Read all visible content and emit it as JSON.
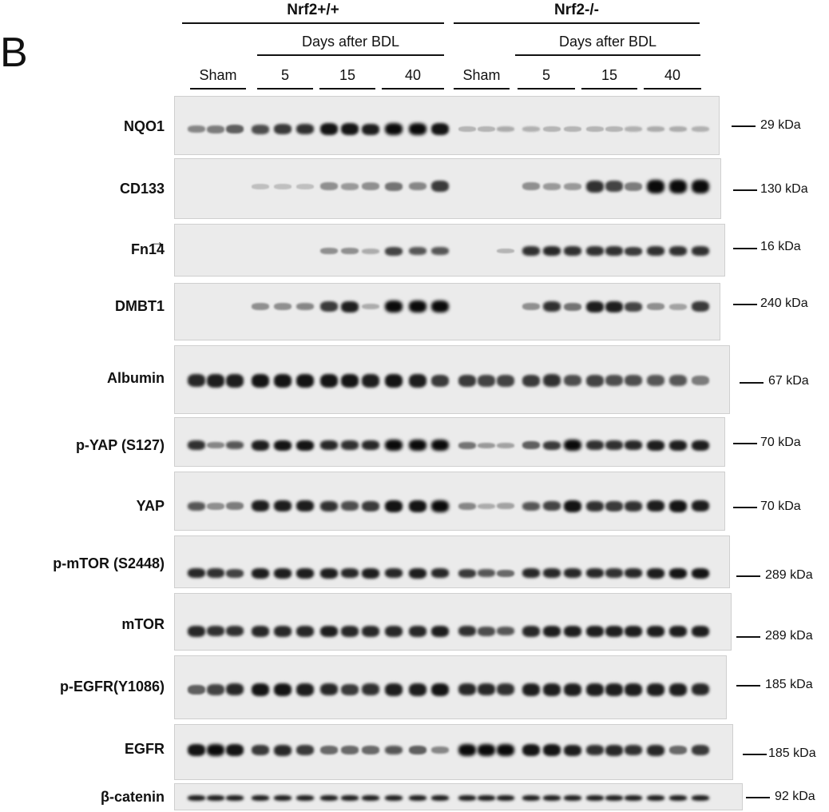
{
  "figure": {
    "panel_letter": "B",
    "genotypes": [
      {
        "label": "Nrf2+/+",
        "days_label": "Days after BDL",
        "groups": [
          {
            "label": "Sham"
          },
          {
            "label": "5"
          },
          {
            "label": "15"
          },
          {
            "label": "40"
          }
        ]
      },
      {
        "label": "Nrf2-/-",
        "days_label": "Days after BDL",
        "groups": [
          {
            "label": "Sham"
          },
          {
            "label": "5"
          },
          {
            "label": "15"
          },
          {
            "label": "40"
          }
        ]
      }
    ],
    "fn14_arrow": "→",
    "blots": [
      {
        "label": "NQO1",
        "marker": "29 kDa",
        "intensities": [
          0.35,
          0.4,
          0.55,
          0.65,
          0.75,
          0.8,
          0.95,
          0.95,
          0.9,
          1,
          1,
          0.95,
          0.1,
          0.1,
          0.15,
          0.12,
          0.1,
          0.1,
          0.1,
          0.1,
          0.12,
          0.15,
          0.15,
          0.12
        ]
      },
      {
        "label": "CD133",
        "marker": "130 kDa",
        "intensities": [
          0,
          0,
          0,
          0.05,
          0.05,
          0.05,
          0.3,
          0.25,
          0.3,
          0.45,
          0.35,
          0.75,
          0,
          0,
          0,
          0.3,
          0.25,
          0.25,
          0.8,
          0.7,
          0.4,
          1,
          1,
          1
        ]
      },
      {
        "label": "Fn14",
        "marker": "16 kDa",
        "intensities": [
          0,
          0,
          0,
          0,
          0,
          0,
          0.3,
          0.3,
          0.15,
          0.7,
          0.6,
          0.6,
          0,
          0,
          0.1,
          0.8,
          0.85,
          0.8,
          0.8,
          0.8,
          0.75,
          0.8,
          0.8,
          0.8
        ]
      },
      {
        "label": "DMBT1",
        "marker": "240 kDa",
        "intensities": [
          0,
          0,
          0,
          0.3,
          0.3,
          0.35,
          0.75,
          0.9,
          0.15,
          1,
          1,
          1,
          0,
          0,
          0,
          0.3,
          0.8,
          0.45,
          0.9,
          0.9,
          0.7,
          0.3,
          0.2,
          0.75
        ]
      },
      {
        "label": "Albumin",
        "marker": "67 kDa",
        "intensities": [
          0.85,
          0.9,
          0.9,
          0.95,
          0.95,
          0.95,
          0.95,
          0.95,
          0.9,
          0.95,
          0.9,
          0.75,
          0.75,
          0.7,
          0.7,
          0.75,
          0.8,
          0.65,
          0.7,
          0.65,
          0.65,
          0.6,
          0.6,
          0.4
        ]
      },
      {
        "label": "p-YAP (S127)",
        "marker": "70 kDa",
        "intensities": [
          0.8,
          0.35,
          0.6,
          0.9,
          0.95,
          0.95,
          0.85,
          0.8,
          0.85,
          1,
          1,
          1,
          0.45,
          0.25,
          0.2,
          0.55,
          0.75,
          1,
          0.8,
          0.8,
          0.85,
          0.9,
          0.9,
          0.9
        ]
      },
      {
        "label": "YAP",
        "marker": "70 kDa",
        "intensities": [
          0.6,
          0.3,
          0.4,
          0.9,
          0.9,
          0.9,
          0.8,
          0.65,
          0.75,
          0.95,
          0.95,
          1,
          0.35,
          0.15,
          0.2,
          0.6,
          0.7,
          0.95,
          0.8,
          0.75,
          0.8,
          0.9,
          0.95,
          0.9
        ]
      },
      {
        "label": "p-mTOR (S2448)",
        "marker": "289 kDa",
        "intensities": [
          0.85,
          0.8,
          0.7,
          0.9,
          0.9,
          0.9,
          0.9,
          0.85,
          0.9,
          0.85,
          0.9,
          0.85,
          0.75,
          0.6,
          0.5,
          0.85,
          0.85,
          0.85,
          0.85,
          0.8,
          0.85,
          0.9,
          0.95,
          0.95
        ]
      },
      {
        "label": "mTOR",
        "marker": "289 kDa",
        "intensities": [
          0.85,
          0.8,
          0.8,
          0.85,
          0.85,
          0.85,
          0.9,
          0.85,
          0.85,
          0.85,
          0.85,
          0.9,
          0.8,
          0.65,
          0.6,
          0.85,
          0.9,
          0.9,
          0.9,
          0.9,
          0.9,
          0.9,
          0.9,
          0.9
        ]
      },
      {
        "label": "p-EGFR(Y1086)",
        "marker": "185 kDa",
        "intensities": [
          0.55,
          0.7,
          0.85,
          0.95,
          0.95,
          0.9,
          0.85,
          0.75,
          0.8,
          0.9,
          0.9,
          0.95,
          0.85,
          0.85,
          0.8,
          0.9,
          0.9,
          0.9,
          0.9,
          0.9,
          0.9,
          0.9,
          0.9,
          0.85
        ]
      },
      {
        "label": "EGFR",
        "marker": "185 kDa",
        "intensities": [
          0.95,
          1,
          0.95,
          0.75,
          0.85,
          0.75,
          0.5,
          0.5,
          0.5,
          0.6,
          0.55,
          0.35,
          1,
          1,
          1,
          0.95,
          0.95,
          0.9,
          0.8,
          0.85,
          0.8,
          0.85,
          0.5,
          0.75
        ]
      },
      {
        "label": "β-catenin",
        "marker": "92 kDa",
        "intensities": [
          0.9,
          0.9,
          0.9,
          0.9,
          0.9,
          0.9,
          0.9,
          0.9,
          0.9,
          0.9,
          0.9,
          0.9,
          0.9,
          0.9,
          0.9,
          0.9,
          0.9,
          0.9,
          0.9,
          0.9,
          0.9,
          0.9,
          0.9,
          0.9
        ]
      }
    ]
  }
}
